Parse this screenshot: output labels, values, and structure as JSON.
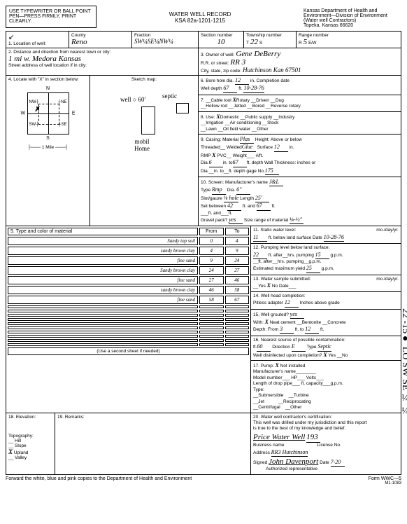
{
  "instructions": "USE TYPEWRITER OR BALL POINT PEN—PRESS FIRMLY, PRINT CLEARLY.",
  "form_title": "WATER WELL RECORD",
  "form_code": "KSA 82a-1201-1215",
  "dept": {
    "l1": "Kansas Department of Health and",
    "l2": "Environment—Division of Environment",
    "l3": "(Water well Contractors)",
    "l4": "Topeka, Kansas 66620"
  },
  "loc": {
    "label": "1. Location of well:",
    "county_label": "County",
    "county": "Reno",
    "fraction_label": "Fraction",
    "fraction": "SW¼SE¼NW¼",
    "section_label": "Section number",
    "section": "10",
    "township_label": "Township number",
    "township_prefix": "T",
    "township": "22",
    "township_suffix": "S",
    "range_label": "Range number",
    "range_prefix": "R",
    "range": "5",
    "range_suffix": "E/W"
  },
  "dist": {
    "label": "2. Distance and direction from nearest town or city:",
    "street_label": "Street address of well location if in city:",
    "value": "1 mi w. Medora Kansas"
  },
  "owner": {
    "label": "3. Owner of well:",
    "name": "Gene DeBerry",
    "rr_label": "R.R. or street:",
    "rr": "RR 3",
    "city_label": "City, state, zip code:",
    "city": "Hutchinson Kan 67501"
  },
  "locate_label": "4. Locate with \"X\" in section below:",
  "sketch_label": "Sketch map:",
  "mile_label": "1 Mile",
  "sketch": {
    "well": "well",
    "dist": "60'",
    "septic": "septic",
    "mobil": "mobil\nHome"
  },
  "materials": {
    "header": "5. Type and color of material",
    "from": "From",
    "to": "To",
    "rows": [
      {
        "mat": "Sandy top soil",
        "from": "0",
        "to": "4"
      },
      {
        "mat": "sandy brown clay",
        "from": "4",
        "to": "9"
      },
      {
        "mat": "fine sand",
        "from": "9",
        "to": "24"
      },
      {
        "mat": "Sandy brown clay",
        "from": "24",
        "to": "27"
      },
      {
        "mat": "fine sand",
        "from": "27",
        "to": "46"
      },
      {
        "mat": "sandy brown clay",
        "from": "46",
        "to": "58"
      },
      {
        "mat": "fine sand",
        "from": "58",
        "to": "67"
      }
    ],
    "footer": "(Use a second sheet if needed)"
  },
  "s6": {
    "label": "6. Bore hole dia.",
    "bore": "12",
    "depth_label": "Well depth",
    "depth": "67",
    "comp_label": "Completion date",
    "comp": "10-28-76"
  },
  "s7": {
    "label": "7.",
    "cable": "Cable tool",
    "rotary": "Rotary",
    "rotary_x": "X",
    "driven": "Driven",
    "dug": "Dug",
    "hollow": "Hollow rod",
    "jetted": "Jetted",
    "bored": "Bored",
    "reverse": "Reverse rotary"
  },
  "s8": {
    "label": "8. Use:",
    "domestic": "Domestic",
    "domestic_x": "X",
    "public": "Public supply",
    "industry": "Industry",
    "irrigation": "Irrigation",
    "ac": "Air conditioning",
    "stock": "Stock",
    "lawn": "Lawn",
    "oil": "Oil field water",
    "other": "Other"
  },
  "s9": {
    "label": "9. Casing: Material",
    "material": "Plas",
    "height_label": "Height: Above or below",
    "threaded": "Threaded",
    "welded": "Welded",
    "glued": "Glue",
    "surface_label": "Surface",
    "surface": "12",
    "rmp_label": "RMP",
    "rmp_x": "X",
    "pvc": "PVC",
    "weight": "Weight",
    "dia_label": "Dia.",
    "dia_from": "6",
    "dia_to": "67",
    "wall_label": "Wall Thickness: inches or",
    "depth_label": "ft. depth",
    "gage_label": "gage No.",
    "gage": "175"
  },
  "s10": {
    "label": "10. Screen: Manufacturer's name",
    "name": "J&L",
    "type_label": "Type",
    "type": "Rmp",
    "dia_label": "Dia.",
    "dia": "6\"",
    "slot_label": "Slot/gauze",
    "slot": "⅛ hole",
    "length_label": "Length",
    "length": "25'",
    "between_label": "Set between",
    "from": "42",
    "to": "67",
    "gravel_label": "Gravel pack?",
    "gravel": "yes",
    "size_label": "Size range of material",
    "size": "⅛-½\""
  },
  "s11": {
    "label": "11. Static water level:",
    "unit": "mo./day/yr.",
    "level": "11",
    "below_label": "ft. below land surface  Date",
    "date": "10-28-76"
  },
  "s12": {
    "label": "12. Pumping level below land surface:",
    "level": "22",
    "after_label": "ft. after",
    "hours_label": "hrs. pumping",
    "hours": "15",
    "gpm_label": "g.p.m.",
    "est_label": "Estimated maximum yield",
    "est": "25"
  },
  "s13": {
    "label": "13. Water sample submitted:",
    "yes": "Yes",
    "no": "No",
    "no_x": "X",
    "date_label": "Date",
    "unit": "mo./day/yr."
  },
  "s14": {
    "label": "14. Well head completion:",
    "pitless_label": "Pitless adapter",
    "pitless": "12",
    "inches_label": "Inches above grade"
  },
  "s15": {
    "label": "15. Well grouted?",
    "grouted": "yes",
    "with_label": "With:",
    "neat_x": "X",
    "neat": "Neat cement",
    "bentonite": "Bentonite",
    "concrete": "Concrete",
    "depth_label": "Depth: From",
    "from": "3",
    "to_label": "ft. to",
    "to": "12",
    "ft": "ft."
  },
  "s16": {
    "label": "16. Nearest source of possible contamination:",
    "ft": "60",
    "dir_label": "Direction",
    "dir": "E",
    "type_label": "Type",
    "type": "Septic",
    "disinfect_label": "Well disinfected upon completion?",
    "yes_x": "X",
    "yes": "Yes",
    "no": "No"
  },
  "s17": {
    "label": "17. Pump:",
    "not_installed_x": "X",
    "not_installed": "Not installed",
    "mfr_label": "Manufacturer's name",
    "model_label": "Model number",
    "hp_label": "HP",
    "volts_label": "Volts",
    "drop_label": "Length of drop pipe",
    "cap_label": "ft. capacity",
    "gpm_label": "g.p.m.",
    "type_label": "Type:",
    "submersible": "Submersible",
    "turbine": "Turbine",
    "jet": "Jet",
    "reciprocating": "Reciprocating",
    "centrifugal": "Centrifugal",
    "other": "Other"
  },
  "s18": {
    "label": "18. Elevation:"
  },
  "s19": {
    "label": "19. Remarks:",
    "topo_label": "Topography:",
    "hill": "Hill",
    "slope": "Slope",
    "upland": "Upland",
    "upland_x": "X",
    "valley": "Valley"
  },
  "s20": {
    "label": "20. Water well contractor's certification:",
    "cert1": "This well was drilled under my jurisdiction and this report",
    "cert2": "is true to the best of my knowledge and belief.",
    "business_label": "Business name",
    "business": "Price Water Well",
    "license": "193",
    "license_label": "License No.",
    "address_label": "Address",
    "address": "RR3 Hutchinson",
    "signed_label": "Signed",
    "signed": "John Davenport",
    "date_label": "Date",
    "date": "7-20",
    "auth_label": "Authorized representative"
  },
  "margin": "22 -15● LO SW SE ¼ ¼",
  "footer_left": "Forward the white, blue and pink copies to the Department of Health and Environment",
  "footer_right": "Form WWC—5",
  "footer_code": "M1-1083"
}
